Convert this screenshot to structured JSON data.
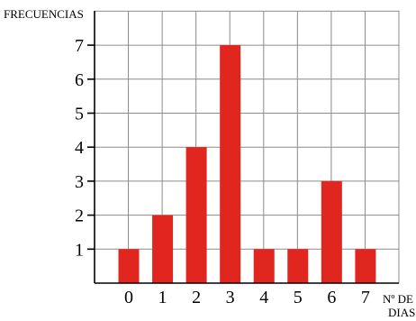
{
  "chart_data": {
    "type": "bar",
    "ylabel": "FRECUENCIAS",
    "xlabel_line1": "Nº DE",
    "xlabel_line2": "DIAS",
    "categories": [
      "0",
      "1",
      "2",
      "3",
      "4",
      "5",
      "6",
      "7"
    ],
    "values": [
      1,
      2,
      4,
      7,
      1,
      1,
      3,
      1
    ],
    "y_ticks": [
      "1",
      "2",
      "3",
      "4",
      "5",
      "6",
      "7"
    ],
    "ylim": [
      0,
      8
    ],
    "grid": true,
    "colors": {
      "bar": "#e0261f",
      "grid": "#8c8c8c",
      "axis": "#000000"
    }
  }
}
